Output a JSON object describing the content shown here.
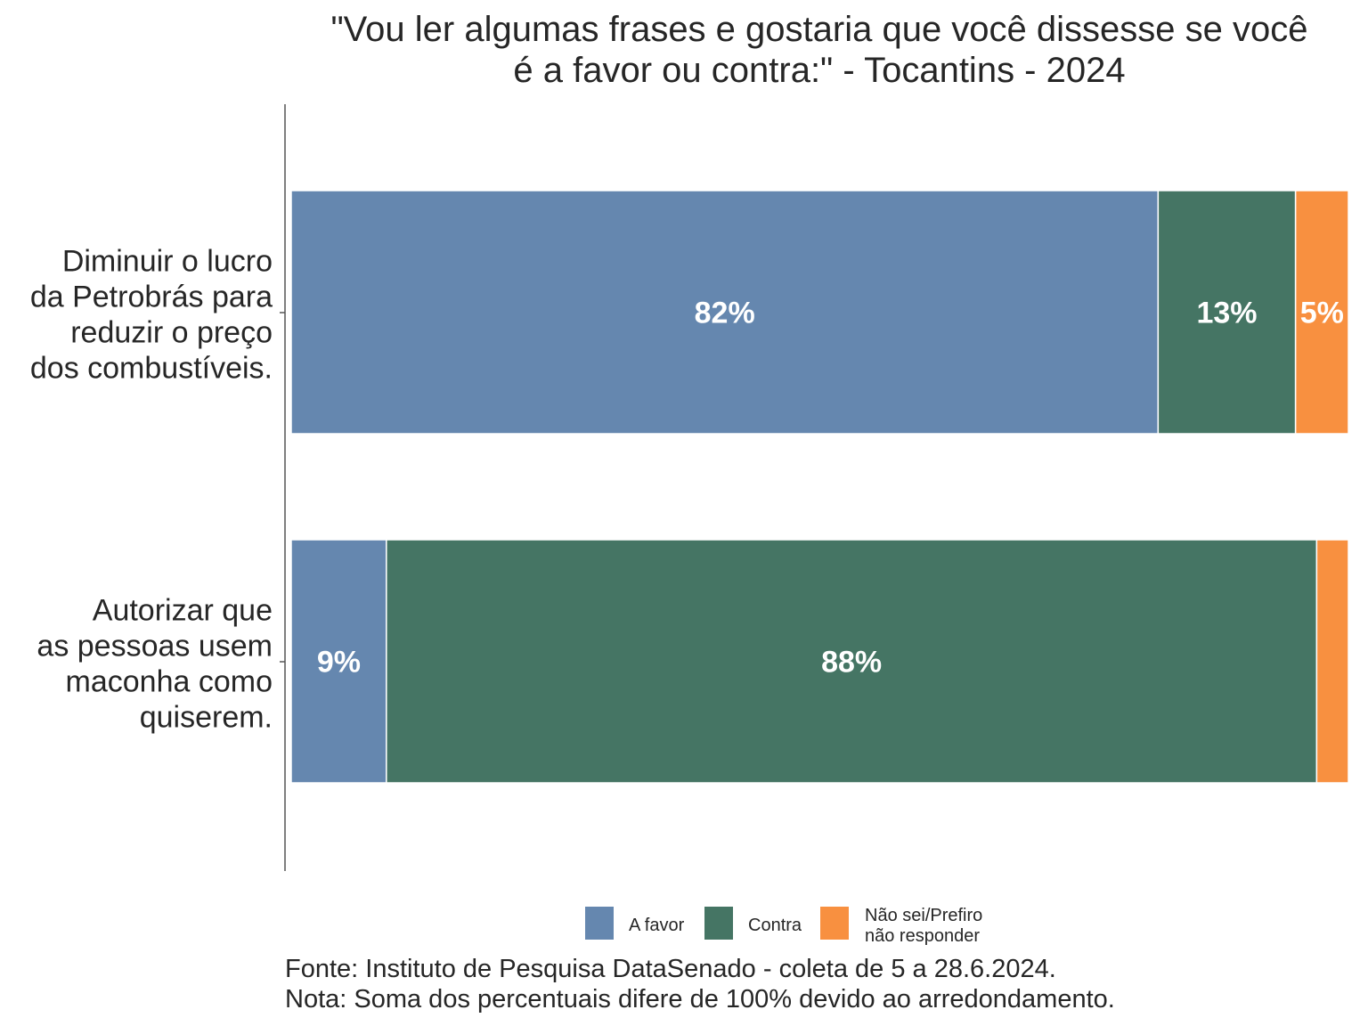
{
  "chart_data": {
    "type": "bar",
    "orientation": "horizontal",
    "stacked": true,
    "title": [
      "\"Vou ler algumas frases e gostaria que você dissesse se você",
      "é a favor ou contra:\" - Tocantins - 2024"
    ],
    "categories": [
      [
        "Diminuir o lucro",
        "da Petrobrás para",
        "reduzir o preço",
        "dos combustíveis."
      ],
      [
        "Autorizar que",
        "as pessoas usem",
        "maconha como",
        "quiserem."
      ]
    ],
    "series": [
      {
        "name": "A favor",
        "color": "#6587AF",
        "values": [
          82,
          9
        ],
        "labels": [
          "82%",
          "9%"
        ]
      },
      {
        "name": "Contra",
        "color": "#457564",
        "values": [
          13,
          88
        ],
        "labels": [
          "13%",
          "88%"
        ]
      },
      {
        "name": "Não sei/Prefiro não responder",
        "legend_lines": [
          "Não sei/Prefiro",
          "não responder"
        ],
        "color": "#F89040",
        "values": [
          5,
          3
        ],
        "labels": [
          "5%",
          ""
        ]
      }
    ],
    "xlim": [
      0,
      100
    ],
    "grid": false,
    "legend_position": "bottom"
  },
  "footer": {
    "source": "Fonte: Instituto de Pesquisa DataSenado - coleta de 5 a 28.6.2024.",
    "note": "Nota: Soma dos percentuais difere de 100% devido ao arredondamento."
  }
}
